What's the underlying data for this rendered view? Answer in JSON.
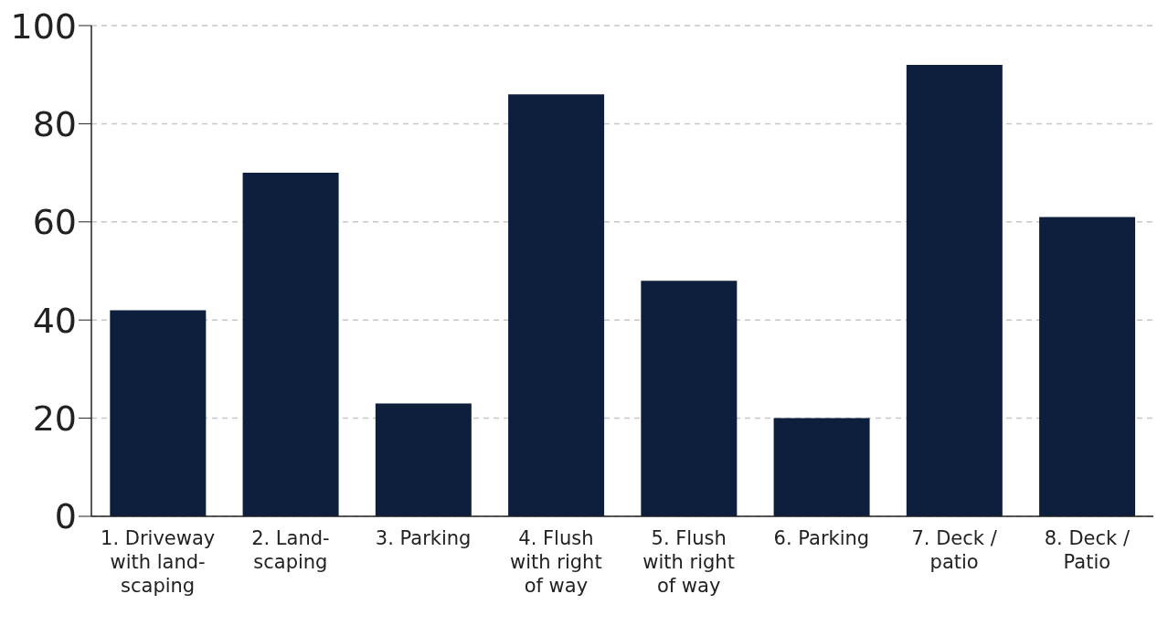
{
  "chart_data": {
    "type": "bar",
    "categories": [
      "1. Driveway\nwith land-\nscaping",
      "2. Land-\nscaping",
      "3. Parking",
      "4. Flush\nwith right\nof way",
      "5. Flush\nwith right\nof way",
      "6. Parking",
      "7. Deck /\npatio",
      "8. Deck /\nPatio"
    ],
    "values": [
      42,
      70,
      23,
      86,
      48,
      20,
      92,
      61
    ],
    "color": "#0d1f3c",
    "ylim": [
      0,
      100
    ],
    "yticks": [
      0,
      20,
      40,
      60,
      80,
      100
    ],
    "grid": "y"
  }
}
